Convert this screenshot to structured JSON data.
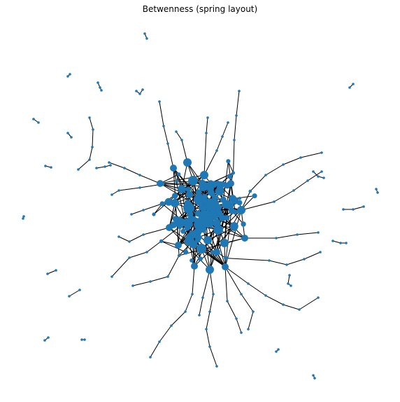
{
  "title": "Betwenness (spring layout)",
  "colors": {
    "node": "#1f77b4",
    "edge": "#000000",
    "background": "#ffffff"
  },
  "chart_data": {
    "type": "network",
    "title": "Betwenness (spring layout)"
  }
}
